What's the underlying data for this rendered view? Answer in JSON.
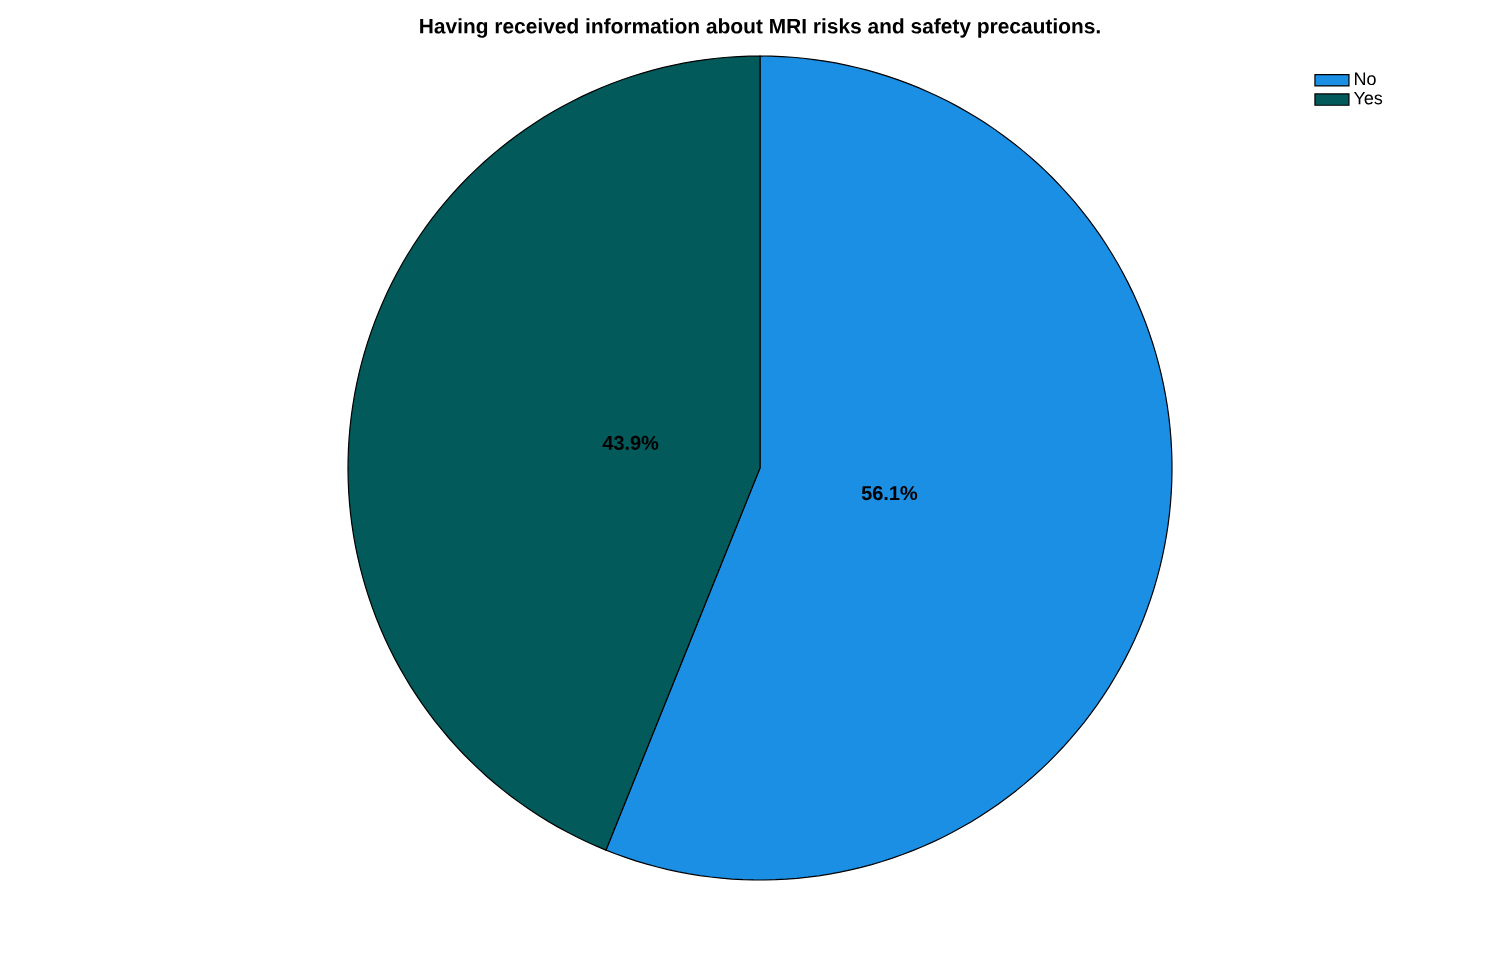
{
  "chart_data": {
    "type": "pie",
    "title": "Having received information about MRI risks and safety precautions.",
    "categories": [
      "No",
      "Yes"
    ],
    "values": [
      56.1,
      43.9
    ],
    "value_labels": [
      "56.1%",
      "43.9%"
    ],
    "colors": [
      "#1a8fe3",
      "#035a5a"
    ],
    "legend": "top right"
  }
}
